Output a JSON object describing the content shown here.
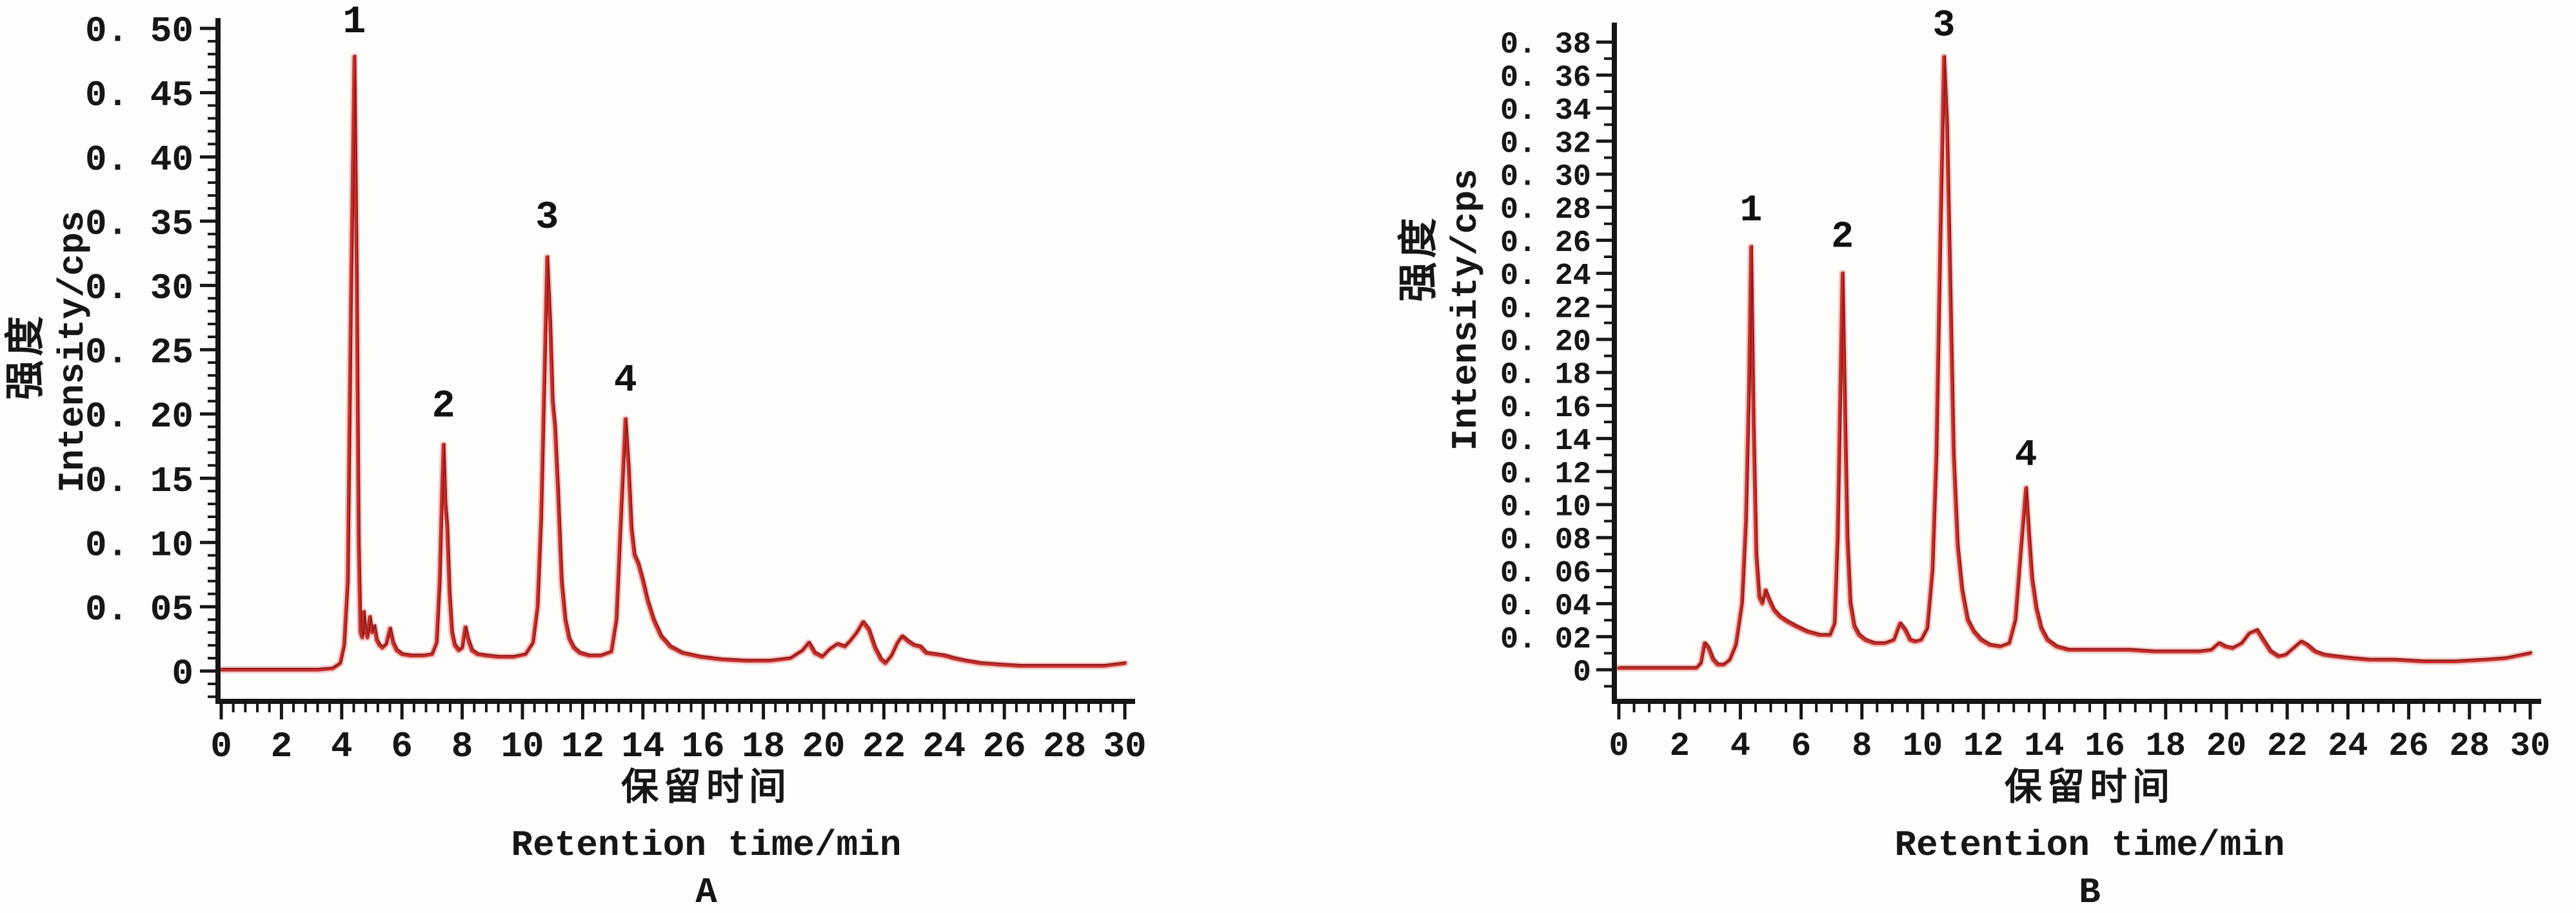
{
  "figure": {
    "background": "#fdfdfc",
    "text_color": "#161616",
    "axis_color": "#161616",
    "chart_data": [
      {
        "panel_label": "A",
        "type": "line",
        "trace_color": "#c5302d",
        "trace_halo_color": "#edb3ae",
        "trace_core_color": "#8e1b19",
        "ylabel_cn": "强度",
        "ylabel_en": "Intensity/cps",
        "xlabel_cn": "保留时间",
        "xlabel_en": "Retention time/min",
        "xlim": [
          0,
          30
        ],
        "ylim": [
          0,
          0.5
        ],
        "grid": false,
        "legend": "none",
        "x_major_step": 2,
        "x_minor_step": 0.4,
        "y_minor_step": 0.01,
        "x_tick_labels": [
          "0",
          "2",
          "4",
          "6",
          "8",
          "10",
          "12",
          "14",
          "16",
          "18",
          "20",
          "22",
          "24",
          "26",
          "28",
          "30"
        ],
        "x_tick_values": [
          0,
          2,
          4,
          6,
          8,
          10,
          12,
          14,
          16,
          18,
          20,
          22,
          24,
          26,
          28,
          30
        ],
        "y_tick_labels": [
          "0. 50",
          "0. 45",
          "0. 40",
          "0. 35",
          "0. 30",
          "0. 25",
          "0. 20",
          "0. 15",
          "0. 10",
          "0. 05",
          "0"
        ],
        "y_tick_values": [
          0.5,
          0.45,
          0.4,
          0.35,
          0.3,
          0.25,
          0.2,
          0.15,
          0.1,
          0.05,
          0
        ],
        "peaks": [
          {
            "label": "1",
            "x": 4.42,
            "y": 0.478,
            "label_y": 0.497
          },
          {
            "label": "2",
            "x": 7.38,
            "y": 0.176,
            "label_y": 0.198
          },
          {
            "label": "3",
            "x": 10.82,
            "y": 0.322,
            "label_y": 0.345
          },
          {
            "label": "4",
            "x": 13.42,
            "y": 0.196,
            "label_y": 0.218
          }
        ],
        "series": [
          [
            0,
            0.001
          ],
          [
            2.0,
            0.001
          ],
          [
            3.2,
            0.001
          ],
          [
            3.7,
            0.002
          ],
          [
            3.95,
            0.006
          ],
          [
            4.08,
            0.02
          ],
          [
            4.2,
            0.07
          ],
          [
            4.3,
            0.28
          ],
          [
            4.42,
            0.478
          ],
          [
            4.5,
            0.3
          ],
          [
            4.56,
            0.1
          ],
          [
            4.62,
            0.03
          ],
          [
            4.68,
            0.026
          ],
          [
            4.73,
            0.046
          ],
          [
            4.78,
            0.032
          ],
          [
            4.85,
            0.026
          ],
          [
            4.93,
            0.042
          ],
          [
            5.0,
            0.03
          ],
          [
            5.08,
            0.035
          ],
          [
            5.16,
            0.024
          ],
          [
            5.25,
            0.02
          ],
          [
            5.35,
            0.018
          ],
          [
            5.48,
            0.021
          ],
          [
            5.6,
            0.033
          ],
          [
            5.7,
            0.022
          ],
          [
            5.82,
            0.016
          ],
          [
            6.0,
            0.013
          ],
          [
            6.3,
            0.012
          ],
          [
            6.7,
            0.012
          ],
          [
            7.0,
            0.013
          ],
          [
            7.15,
            0.022
          ],
          [
            7.25,
            0.07
          ],
          [
            7.33,
            0.14
          ],
          [
            7.38,
            0.176
          ],
          [
            7.44,
            0.13
          ],
          [
            7.5,
            0.112
          ],
          [
            7.58,
            0.06
          ],
          [
            7.66,
            0.03
          ],
          [
            7.75,
            0.02
          ],
          [
            7.88,
            0.016
          ],
          [
            8.0,
            0.018
          ],
          [
            8.1,
            0.034
          ],
          [
            8.2,
            0.024
          ],
          [
            8.32,
            0.016
          ],
          [
            8.5,
            0.013
          ],
          [
            8.8,
            0.012
          ],
          [
            9.2,
            0.011
          ],
          [
            9.7,
            0.011
          ],
          [
            10.1,
            0.013
          ],
          [
            10.35,
            0.022
          ],
          [
            10.5,
            0.05
          ],
          [
            10.62,
            0.12
          ],
          [
            10.72,
            0.22
          ],
          [
            10.82,
            0.322
          ],
          [
            10.92,
            0.27
          ],
          [
            11.0,
            0.21
          ],
          [
            11.08,
            0.19
          ],
          [
            11.18,
            0.14
          ],
          [
            11.3,
            0.07
          ],
          [
            11.42,
            0.04
          ],
          [
            11.55,
            0.025
          ],
          [
            11.7,
            0.018
          ],
          [
            11.9,
            0.014
          ],
          [
            12.2,
            0.012
          ],
          [
            12.6,
            0.012
          ],
          [
            12.95,
            0.015
          ],
          [
            13.12,
            0.04
          ],
          [
            13.25,
            0.11
          ],
          [
            13.42,
            0.196
          ],
          [
            13.52,
            0.16
          ],
          [
            13.62,
            0.11
          ],
          [
            13.72,
            0.09
          ],
          [
            13.85,
            0.083
          ],
          [
            14.0,
            0.07
          ],
          [
            14.15,
            0.055
          ],
          [
            14.35,
            0.04
          ],
          [
            14.6,
            0.027
          ],
          [
            14.9,
            0.019
          ],
          [
            15.3,
            0.014
          ],
          [
            15.9,
            0.011
          ],
          [
            16.6,
            0.009
          ],
          [
            17.4,
            0.008
          ],
          [
            18.2,
            0.008
          ],
          [
            18.9,
            0.01
          ],
          [
            19.3,
            0.016
          ],
          [
            19.5,
            0.022
          ],
          [
            19.7,
            0.014
          ],
          [
            19.95,
            0.011
          ],
          [
            20.2,
            0.017
          ],
          [
            20.45,
            0.021
          ],
          [
            20.7,
            0.019
          ],
          [
            20.9,
            0.024
          ],
          [
            21.1,
            0.03
          ],
          [
            21.3,
            0.038
          ],
          [
            21.5,
            0.032
          ],
          [
            21.7,
            0.018
          ],
          [
            21.9,
            0.009
          ],
          [
            22.05,
            0.006
          ],
          [
            22.25,
            0.012
          ],
          [
            22.45,
            0.022
          ],
          [
            22.6,
            0.027
          ],
          [
            22.8,
            0.023
          ],
          [
            23.0,
            0.02
          ],
          [
            23.2,
            0.019
          ],
          [
            23.4,
            0.014
          ],
          [
            23.7,
            0.013
          ],
          [
            24.0,
            0.012
          ],
          [
            24.3,
            0.01
          ],
          [
            24.7,
            0.008
          ],
          [
            25.2,
            0.006
          ],
          [
            25.8,
            0.005
          ],
          [
            26.5,
            0.004
          ],
          [
            27.5,
            0.004
          ],
          [
            28.5,
            0.004
          ],
          [
            29.3,
            0.004
          ],
          [
            30.0,
            0.006
          ]
        ]
      },
      {
        "panel_label": "B",
        "type": "line",
        "trace_color": "#c5302d",
        "trace_halo_color": "#edb3ae",
        "trace_core_color": "#8e1b19",
        "ylabel_cn": "强度",
        "ylabel_en": "Intensity/cps",
        "xlabel_cn": "保留时间",
        "xlabel_en": "Retention time/min",
        "xlim": [
          0,
          30
        ],
        "ylim": [
          0,
          0.38
        ],
        "grid": false,
        "legend": "none",
        "x_major_step": 2,
        "x_minor_step": 0.5,
        "y_minor_step": 0.01,
        "x_tick_labels": [
          "0",
          "2",
          "4",
          "6",
          "8",
          "10",
          "12",
          "14",
          "16",
          "18",
          "20",
          "22",
          "24",
          "26",
          "28",
          "30"
        ],
        "x_tick_values": [
          0,
          2,
          4,
          6,
          8,
          10,
          12,
          14,
          16,
          18,
          20,
          22,
          24,
          26,
          28,
          30
        ],
        "y_tick_labels": [
          "0. 38",
          "0. 36",
          "0. 34",
          "0. 32",
          "0. 30",
          "0. 28",
          "0. 26",
          "0. 24",
          "0. 22",
          "0. 20",
          "0. 18",
          "0. 16",
          "0. 14",
          "0. 12",
          "0. 10",
          "0. 08",
          "0. 06",
          "0. 04",
          "0. 02",
          "0"
        ],
        "y_tick_values": [
          0.38,
          0.36,
          0.34,
          0.32,
          0.3,
          0.28,
          0.26,
          0.24,
          0.22,
          0.2,
          0.18,
          0.16,
          0.14,
          0.12,
          0.1,
          0.08,
          0.06,
          0.04,
          0.02,
          0
        ],
        "peaks": [
          {
            "label": "1",
            "x": 4.35,
            "y": 0.256,
            "label_y": 0.272
          },
          {
            "label": "2",
            "x": 7.36,
            "y": 0.24,
            "label_y": 0.256
          },
          {
            "label": "3",
            "x": 10.7,
            "y": 0.371,
            "label_y": 0.384
          },
          {
            "label": "4",
            "x": 13.4,
            "y": 0.11,
            "label_y": 0.124
          }
        ],
        "series": [
          [
            0,
            0.001
          ],
          [
            2.0,
            0.001
          ],
          [
            2.55,
            0.001
          ],
          [
            2.7,
            0.004
          ],
          [
            2.82,
            0.016
          ],
          [
            2.95,
            0.013
          ],
          [
            3.1,
            0.006
          ],
          [
            3.25,
            0.003
          ],
          [
            3.45,
            0.003
          ],
          [
            3.65,
            0.006
          ],
          [
            3.85,
            0.015
          ],
          [
            4.05,
            0.04
          ],
          [
            4.18,
            0.09
          ],
          [
            4.28,
            0.17
          ],
          [
            4.35,
            0.256
          ],
          [
            4.43,
            0.15
          ],
          [
            4.52,
            0.07
          ],
          [
            4.62,
            0.044
          ],
          [
            4.72,
            0.04
          ],
          [
            4.82,
            0.048
          ],
          [
            4.95,
            0.042
          ],
          [
            5.1,
            0.036
          ],
          [
            5.3,
            0.032
          ],
          [
            5.55,
            0.029
          ],
          [
            5.85,
            0.026
          ],
          [
            6.2,
            0.023
          ],
          [
            6.6,
            0.021
          ],
          [
            6.95,
            0.021
          ],
          [
            7.1,
            0.028
          ],
          [
            7.2,
            0.08
          ],
          [
            7.3,
            0.18
          ],
          [
            7.36,
            0.24
          ],
          [
            7.44,
            0.16
          ],
          [
            7.52,
            0.08
          ],
          [
            7.62,
            0.04
          ],
          [
            7.75,
            0.026
          ],
          [
            7.9,
            0.021
          ],
          [
            8.1,
            0.018
          ],
          [
            8.4,
            0.016
          ],
          [
            8.75,
            0.016
          ],
          [
            9.05,
            0.018
          ],
          [
            9.25,
            0.028
          ],
          [
            9.42,
            0.024
          ],
          [
            9.58,
            0.018
          ],
          [
            9.75,
            0.017
          ],
          [
            9.95,
            0.018
          ],
          [
            10.15,
            0.025
          ],
          [
            10.32,
            0.06
          ],
          [
            10.45,
            0.13
          ],
          [
            10.58,
            0.26
          ],
          [
            10.7,
            0.371
          ],
          [
            10.8,
            0.33
          ],
          [
            10.9,
            0.24
          ],
          [
            11.02,
            0.13
          ],
          [
            11.15,
            0.075
          ],
          [
            11.3,
            0.048
          ],
          [
            11.48,
            0.03
          ],
          [
            11.68,
            0.023
          ],
          [
            11.92,
            0.018
          ],
          [
            12.2,
            0.015
          ],
          [
            12.55,
            0.014
          ],
          [
            12.85,
            0.016
          ],
          [
            13.05,
            0.03
          ],
          [
            13.22,
            0.07
          ],
          [
            13.4,
            0.11
          ],
          [
            13.5,
            0.082
          ],
          [
            13.6,
            0.055
          ],
          [
            13.74,
            0.037
          ],
          [
            13.9,
            0.025
          ],
          [
            14.1,
            0.018
          ],
          [
            14.4,
            0.014
          ],
          [
            14.8,
            0.012
          ],
          [
            15.3,
            0.012
          ],
          [
            16.0,
            0.012
          ],
          [
            16.8,
            0.012
          ],
          [
            17.6,
            0.011
          ],
          [
            18.4,
            0.011
          ],
          [
            19.1,
            0.011
          ],
          [
            19.5,
            0.012
          ],
          [
            19.75,
            0.016
          ],
          [
            19.95,
            0.014
          ],
          [
            20.2,
            0.013
          ],
          [
            20.5,
            0.016
          ],
          [
            20.75,
            0.022
          ],
          [
            21.0,
            0.024
          ],
          [
            21.2,
            0.018
          ],
          [
            21.45,
            0.011
          ],
          [
            21.7,
            0.008
          ],
          [
            21.95,
            0.009
          ],
          [
            22.2,
            0.013
          ],
          [
            22.45,
            0.017
          ],
          [
            22.65,
            0.015
          ],
          [
            22.9,
            0.011
          ],
          [
            23.2,
            0.009
          ],
          [
            23.6,
            0.008
          ],
          [
            24.1,
            0.007
          ],
          [
            24.7,
            0.006
          ],
          [
            25.5,
            0.006
          ],
          [
            26.5,
            0.005
          ],
          [
            27.5,
            0.005
          ],
          [
            28.5,
            0.006
          ],
          [
            29.2,
            0.007
          ],
          [
            30.0,
            0.01
          ]
        ]
      }
    ]
  }
}
